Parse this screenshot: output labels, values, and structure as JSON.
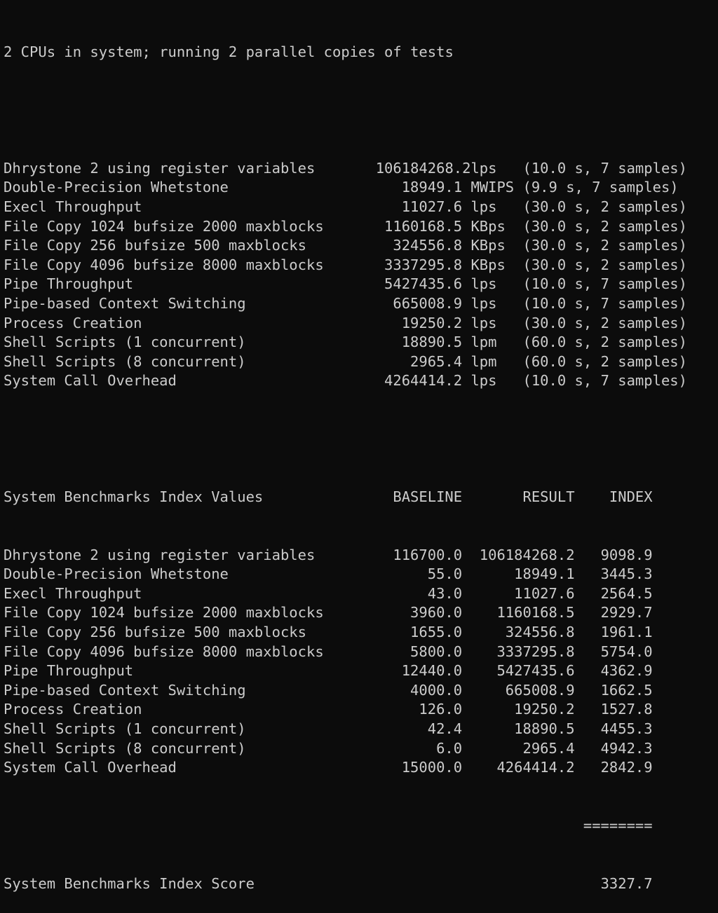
{
  "header_line": "2 CPUs in system; running 2 parallel copies of tests",
  "results": [
    {
      "name": "Dhrystone 2 using register variables",
      "value": "106184268.2",
      "unit": "lps",
      "info": "(10.0 s, 7 samples)"
    },
    {
      "name": "Double-Precision Whetstone",
      "value": "18949.1",
      "unit": "MWIPS",
      "info": "(9.9 s, 7 samples)"
    },
    {
      "name": "Execl Throughput",
      "value": "11027.6",
      "unit": "lps",
      "info": "(30.0 s, 2 samples)"
    },
    {
      "name": "File Copy 1024 bufsize 2000 maxblocks",
      "value": "1160168.5",
      "unit": "KBps",
      "info": "(30.0 s, 2 samples)"
    },
    {
      "name": "File Copy 256 bufsize 500 maxblocks",
      "value": "324556.8",
      "unit": "KBps",
      "info": "(30.0 s, 2 samples)"
    },
    {
      "name": "File Copy 4096 bufsize 8000 maxblocks",
      "value": "3337295.8",
      "unit": "KBps",
      "info": "(30.0 s, 2 samples)"
    },
    {
      "name": "Pipe Throughput",
      "value": "5427435.6",
      "unit": "lps",
      "info": "(10.0 s, 7 samples)"
    },
    {
      "name": "Pipe-based Context Switching",
      "value": "665008.9",
      "unit": "lps",
      "info": "(10.0 s, 7 samples)"
    },
    {
      "name": "Process Creation",
      "value": "19250.2",
      "unit": "lps",
      "info": "(30.0 s, 2 samples)"
    },
    {
      "name": "Shell Scripts (1 concurrent)",
      "value": "18890.5",
      "unit": "lpm",
      "info": "(60.0 s, 2 samples)"
    },
    {
      "name": "Shell Scripts (8 concurrent)",
      "value": "2965.4",
      "unit": "lpm",
      "info": "(60.0 s, 2 samples)"
    },
    {
      "name": "System Call Overhead",
      "value": "4264414.2",
      "unit": "lps",
      "info": "(10.0 s, 7 samples)"
    }
  ],
  "index_table": {
    "title": "System Benchmarks Index Values",
    "headers": {
      "baseline": "BASELINE",
      "result": "RESULT",
      "index": "INDEX"
    },
    "rows": [
      {
        "name": "Dhrystone 2 using register variables",
        "baseline": "116700.0",
        "result": "106184268.2",
        "index": "9098.9"
      },
      {
        "name": "Double-Precision Whetstone",
        "baseline": "55.0",
        "result": "18949.1",
        "index": "3445.3"
      },
      {
        "name": "Execl Throughput",
        "baseline": "43.0",
        "result": "11027.6",
        "index": "2564.5"
      },
      {
        "name": "File Copy 1024 bufsize 2000 maxblocks",
        "baseline": "3960.0",
        "result": "1160168.5",
        "index": "2929.7"
      },
      {
        "name": "File Copy 256 bufsize 500 maxblocks",
        "baseline": "1655.0",
        "result": "324556.8",
        "index": "1961.1"
      },
      {
        "name": "File Copy 4096 bufsize 8000 maxblocks",
        "baseline": "5800.0",
        "result": "3337295.8",
        "index": "5754.0"
      },
      {
        "name": "Pipe Throughput",
        "baseline": "12440.0",
        "result": "5427435.6",
        "index": "4362.9"
      },
      {
        "name": "Pipe-based Context Switching",
        "baseline": "4000.0",
        "result": "665008.9",
        "index": "1662.5"
      },
      {
        "name": "Process Creation",
        "baseline": "126.0",
        "result": "19250.2",
        "index": "1527.8"
      },
      {
        "name": "Shell Scripts (1 concurrent)",
        "baseline": "42.4",
        "result": "18890.5",
        "index": "4455.3"
      },
      {
        "name": "Shell Scripts (8 concurrent)",
        "baseline": "6.0",
        "result": "2965.4",
        "index": "4942.3"
      },
      {
        "name": "System Call Overhead",
        "baseline": "15000.0",
        "result": "4264414.2",
        "index": "2842.9"
      }
    ],
    "separator": "========",
    "score_label": "System Benchmarks Index Score",
    "score": "3327.7"
  }
}
